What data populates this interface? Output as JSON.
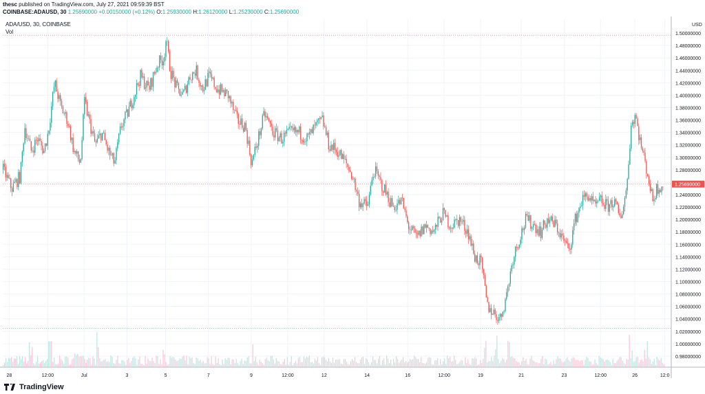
{
  "header": {
    "user": "thesc",
    "published": "published on TradingView.com, July 27, 2021 09:59:39 BST",
    "symbol_line": "COINBASE:ADAUSD, 30",
    "price": "1.25690000",
    "change": "+0.00150000 (+0.12%)",
    "o_label": "O:",
    "o_value": "1.25930000",
    "h_label": "H:",
    "h_value": "1.26120000",
    "l_label": "L:",
    "l_value": "1.25230000",
    "c_label": "C:",
    "c_value": "1.25690000"
  },
  "legend": {
    "title": "ADA/USD, 30, COINBASE",
    "vol_label": "Vol"
  },
  "footer": {
    "brand": "TradingView"
  },
  "colors": {
    "up": "#26a69a",
    "down": "#ef5350",
    "last_price_bg": "#ef5350",
    "grid": "#f0f3fa"
  },
  "chart_data": {
    "type": "candlestick",
    "pair": "ADA/USD",
    "timeframe": "30",
    "exchange": "COINBASE",
    "currency_label": "USD",
    "last_price_label": "1.25690000",
    "ylim": [
      0.96,
      1.52
    ],
    "y_ticks": [
      "1.50000000",
      "1.48000000",
      "1.46000000",
      "1.44000000",
      "1.42000000",
      "1.40000000",
      "1.38000000",
      "1.36000000",
      "1.34000000",
      "1.32000000",
      "1.30000000",
      "1.28000000",
      "1.26000000",
      "1.24000000",
      "1.22000000",
      "1.20000000",
      "1.18000000",
      "1.16000000",
      "1.14000000",
      "1.12000000",
      "1.10000000",
      "1.08000000",
      "1.06000000",
      "1.04000000",
      "1.02000000",
      "1.00000000",
      "0.98000000"
    ],
    "y_tick_values": [
      1.5,
      1.48,
      1.46,
      1.44,
      1.42,
      1.4,
      1.38,
      1.36,
      1.34,
      1.32,
      1.3,
      1.28,
      1.26,
      1.24,
      1.22,
      1.2,
      1.18,
      1.16,
      1.14,
      1.12,
      1.1,
      1.08,
      1.06,
      1.04,
      1.02,
      1.0,
      0.98
    ],
    "x_ticks": [
      "28",
      "12:00",
      "Jul",
      "3",
      "5",
      "7",
      "9",
      "12:00",
      "12",
      "14",
      "16",
      "12:00",
      "19",
      "21",
      "23",
      "12:00",
      "26",
      "12:0"
    ],
    "x_tick_index": [
      0.3,
      2.1,
      3.8,
      5.8,
      7.6,
      9.6,
      11.6,
      13.3,
      15.0,
      17.0,
      18.9,
      20.6,
      22.3,
      24.2,
      26.2,
      27.9,
      29.5,
      30.9
    ],
    "horizontal_lines": [
      1.4966,
      1.2569,
      1.0248
    ],
    "path": [
      [
        0,
        1.28
      ],
      [
        0.4,
        1.25
      ],
      [
        0.8,
        1.27
      ],
      [
        1.0,
        1.35
      ],
      [
        1.3,
        1.31
      ],
      [
        1.6,
        1.33
      ],
      [
        1.9,
        1.31
      ],
      [
        2.1,
        1.34
      ],
      [
        2.4,
        1.42
      ],
      [
        2.7,
        1.38
      ],
      [
        3.0,
        1.36
      ],
      [
        3.3,
        1.31
      ],
      [
        3.6,
        1.29
      ],
      [
        3.8,
        1.39
      ],
      [
        4.0,
        1.36
      ],
      [
        4.3,
        1.32
      ],
      [
        4.6,
        1.34
      ],
      [
        4.9,
        1.31
      ],
      [
        5.2,
        1.29
      ],
      [
        5.5,
        1.35
      ],
      [
        5.8,
        1.37
      ],
      [
        6.1,
        1.4
      ],
      [
        6.4,
        1.43
      ],
      [
        6.8,
        1.41
      ],
      [
        7.2,
        1.45
      ],
      [
        7.5,
        1.46
      ],
      [
        7.6,
        1.49
      ],
      [
        7.8,
        1.44
      ],
      [
        8.1,
        1.41
      ],
      [
        8.4,
        1.4
      ],
      [
        8.7,
        1.43
      ],
      [
        9.0,
        1.44
      ],
      [
        9.3,
        1.41
      ],
      [
        9.6,
        1.43
      ],
      [
        10.0,
        1.41
      ],
      [
        10.5,
        1.4
      ],
      [
        10.9,
        1.36
      ],
      [
        11.3,
        1.35
      ],
      [
        11.6,
        1.29
      ],
      [
        11.9,
        1.33
      ],
      [
        12.2,
        1.37
      ],
      [
        12.6,
        1.34
      ],
      [
        13.0,
        1.33
      ],
      [
        13.4,
        1.34
      ],
      [
        13.8,
        1.34
      ],
      [
        14.2,
        1.33
      ],
      [
        14.6,
        1.35
      ],
      [
        14.9,
        1.36
      ],
      [
        15.2,
        1.32
      ],
      [
        15.6,
        1.31
      ],
      [
        16.0,
        1.29
      ],
      [
        16.3,
        1.27
      ],
      [
        16.6,
        1.23
      ],
      [
        17.0,
        1.22
      ],
      [
        17.3,
        1.28
      ],
      [
        17.6,
        1.26
      ],
      [
        17.9,
        1.24
      ],
      [
        18.2,
        1.22
      ],
      [
        18.6,
        1.23
      ],
      [
        18.9,
        1.19
      ],
      [
        19.3,
        1.17
      ],
      [
        19.7,
        1.19
      ],
      [
        20.1,
        1.18
      ],
      [
        20.5,
        1.21
      ],
      [
        20.9,
        1.19
      ],
      [
        21.3,
        1.2
      ],
      [
        21.7,
        1.18
      ],
      [
        22.0,
        1.14
      ],
      [
        22.3,
        1.13
      ],
      [
        22.6,
        1.06
      ],
      [
        22.9,
        1.05
      ],
      [
        23.2,
        1.04
      ],
      [
        23.5,
        1.08
      ],
      [
        23.8,
        1.14
      ],
      [
        24.1,
        1.17
      ],
      [
        24.4,
        1.2
      ],
      [
        24.8,
        1.19
      ],
      [
        25.1,
        1.18
      ],
      [
        25.4,
        1.2
      ],
      [
        25.8,
        1.19
      ],
      [
        26.1,
        1.17
      ],
      [
        26.4,
        1.15
      ],
      [
        26.7,
        1.2
      ],
      [
        27.0,
        1.23
      ],
      [
        27.3,
        1.24
      ],
      [
        27.6,
        1.22
      ],
      [
        27.9,
        1.23
      ],
      [
        28.2,
        1.22
      ],
      [
        28.5,
        1.23
      ],
      [
        28.8,
        1.2
      ],
      [
        29.1,
        1.25
      ],
      [
        29.3,
        1.35
      ],
      [
        29.5,
        1.37
      ],
      [
        29.7,
        1.33
      ],
      [
        29.9,
        1.3
      ],
      [
        30.1,
        1.27
      ],
      [
        30.3,
        1.23
      ],
      [
        30.5,
        1.25
      ],
      [
        30.8,
        1.257
      ]
    ],
    "volume_spikes": [
      [
        1.3,
        0.6
      ],
      [
        2.2,
        0.9
      ],
      [
        3.4,
        0.5
      ],
      [
        4.4,
        0.6
      ],
      [
        7.5,
        0.4
      ],
      [
        11.7,
        0.3
      ],
      [
        22.5,
        0.5
      ],
      [
        23.0,
        0.7
      ],
      [
        23.6,
        0.5
      ],
      [
        29.3,
        0.8
      ],
      [
        30.0,
        0.5
      ]
    ]
  }
}
